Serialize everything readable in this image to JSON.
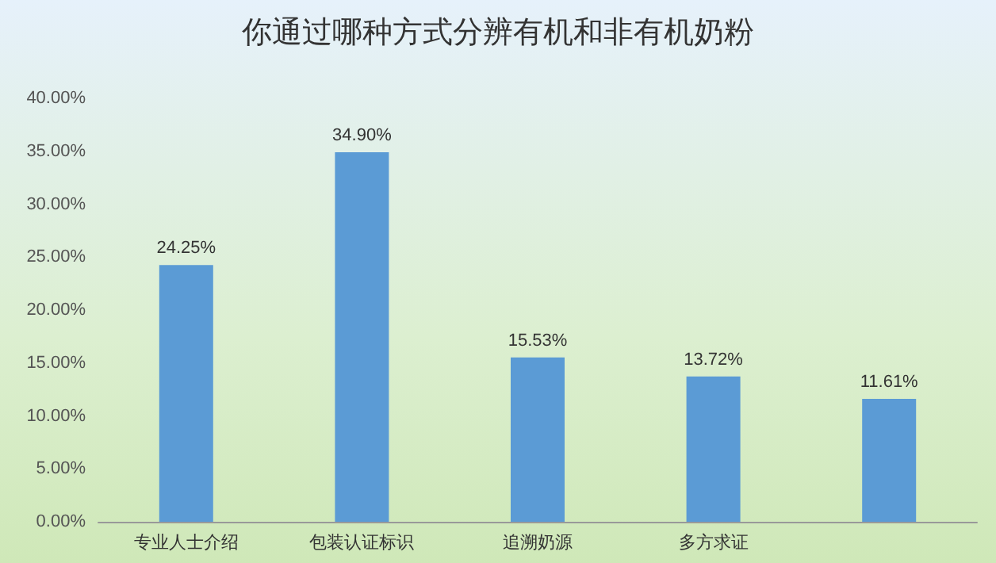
{
  "chart_data": {
    "type": "bar",
    "title": "你通过哪种方式分辨有机和非有机奶粉",
    "categories": [
      "专业人士介绍",
      "包装认证标识",
      "追溯奶源",
      "多方求证",
      null
    ],
    "values": [
      24.25,
      34.9,
      15.53,
      13.72,
      11.61
    ],
    "value_labels": [
      "24.25%",
      "34.90%",
      "15.53%",
      "13.72%",
      "11.61%"
    ],
    "color": "#5b9bd5",
    "ylim": [
      0,
      40
    ],
    "yticks": [
      {
        "value": 0,
        "label": "0.00%"
      },
      {
        "value": 5,
        "label": "5.00%"
      },
      {
        "value": 10,
        "label": "10.00%"
      },
      {
        "value": 15,
        "label": "15.00%"
      },
      {
        "value": 20,
        "label": "20.00%"
      },
      {
        "value": 25,
        "label": "25.00%"
      },
      {
        "value": 30,
        "label": "30.00%"
      },
      {
        "value": 35,
        "label": "35.00%"
      },
      {
        "value": 40,
        "label": "40.00%"
      }
    ],
    "grid": false
  }
}
